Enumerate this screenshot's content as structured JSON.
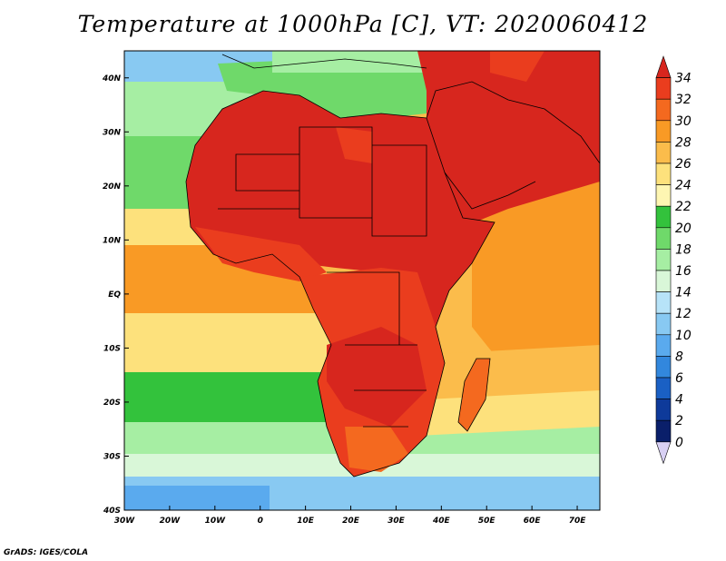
{
  "title": "Temperature at 1000hPa [C], VT: 2020060412",
  "credit": "GrADS: IGES/COLA",
  "map": {
    "lon_range": [
      -30,
      75
    ],
    "lat_range": [
      -40,
      45
    ],
    "x_ticks": [
      "30W",
      "20W",
      "10W",
      "0",
      "10E",
      "20E",
      "30E",
      "40E",
      "50E",
      "60E",
      "70E"
    ],
    "x_tick_values": [
      -30,
      -20,
      -10,
      0,
      10,
      20,
      30,
      40,
      50,
      60,
      70
    ],
    "y_ticks": [
      "40N",
      "30N",
      "20N",
      "10N",
      "EQ",
      "10S",
      "20S",
      "30S",
      "40S"
    ],
    "y_tick_values": [
      40,
      30,
      20,
      10,
      0,
      -10,
      -20,
      -30,
      -40
    ]
  },
  "colorbar": {
    "labels": [
      "34",
      "32",
      "30",
      "28",
      "26",
      "24",
      "22",
      "20",
      "18",
      "16",
      "14",
      "12",
      "10",
      "8",
      "6",
      "4",
      "2",
      "0"
    ],
    "colors": [
      "#d7261e",
      "#ea3d1e",
      "#f4691f",
      "#f99a25",
      "#fbbc4b",
      "#fde17c",
      "#fef6b2",
      "#33c23c",
      "#6fd96a",
      "#a6eea3",
      "#d9f7d8",
      "#b7e3f8",
      "#88c9f2",
      "#5aaaee",
      "#3287dd",
      "#1a60c4",
      "#0e3a9a",
      "#0a1f6a",
      "#d8d0f4"
    ]
  }
}
